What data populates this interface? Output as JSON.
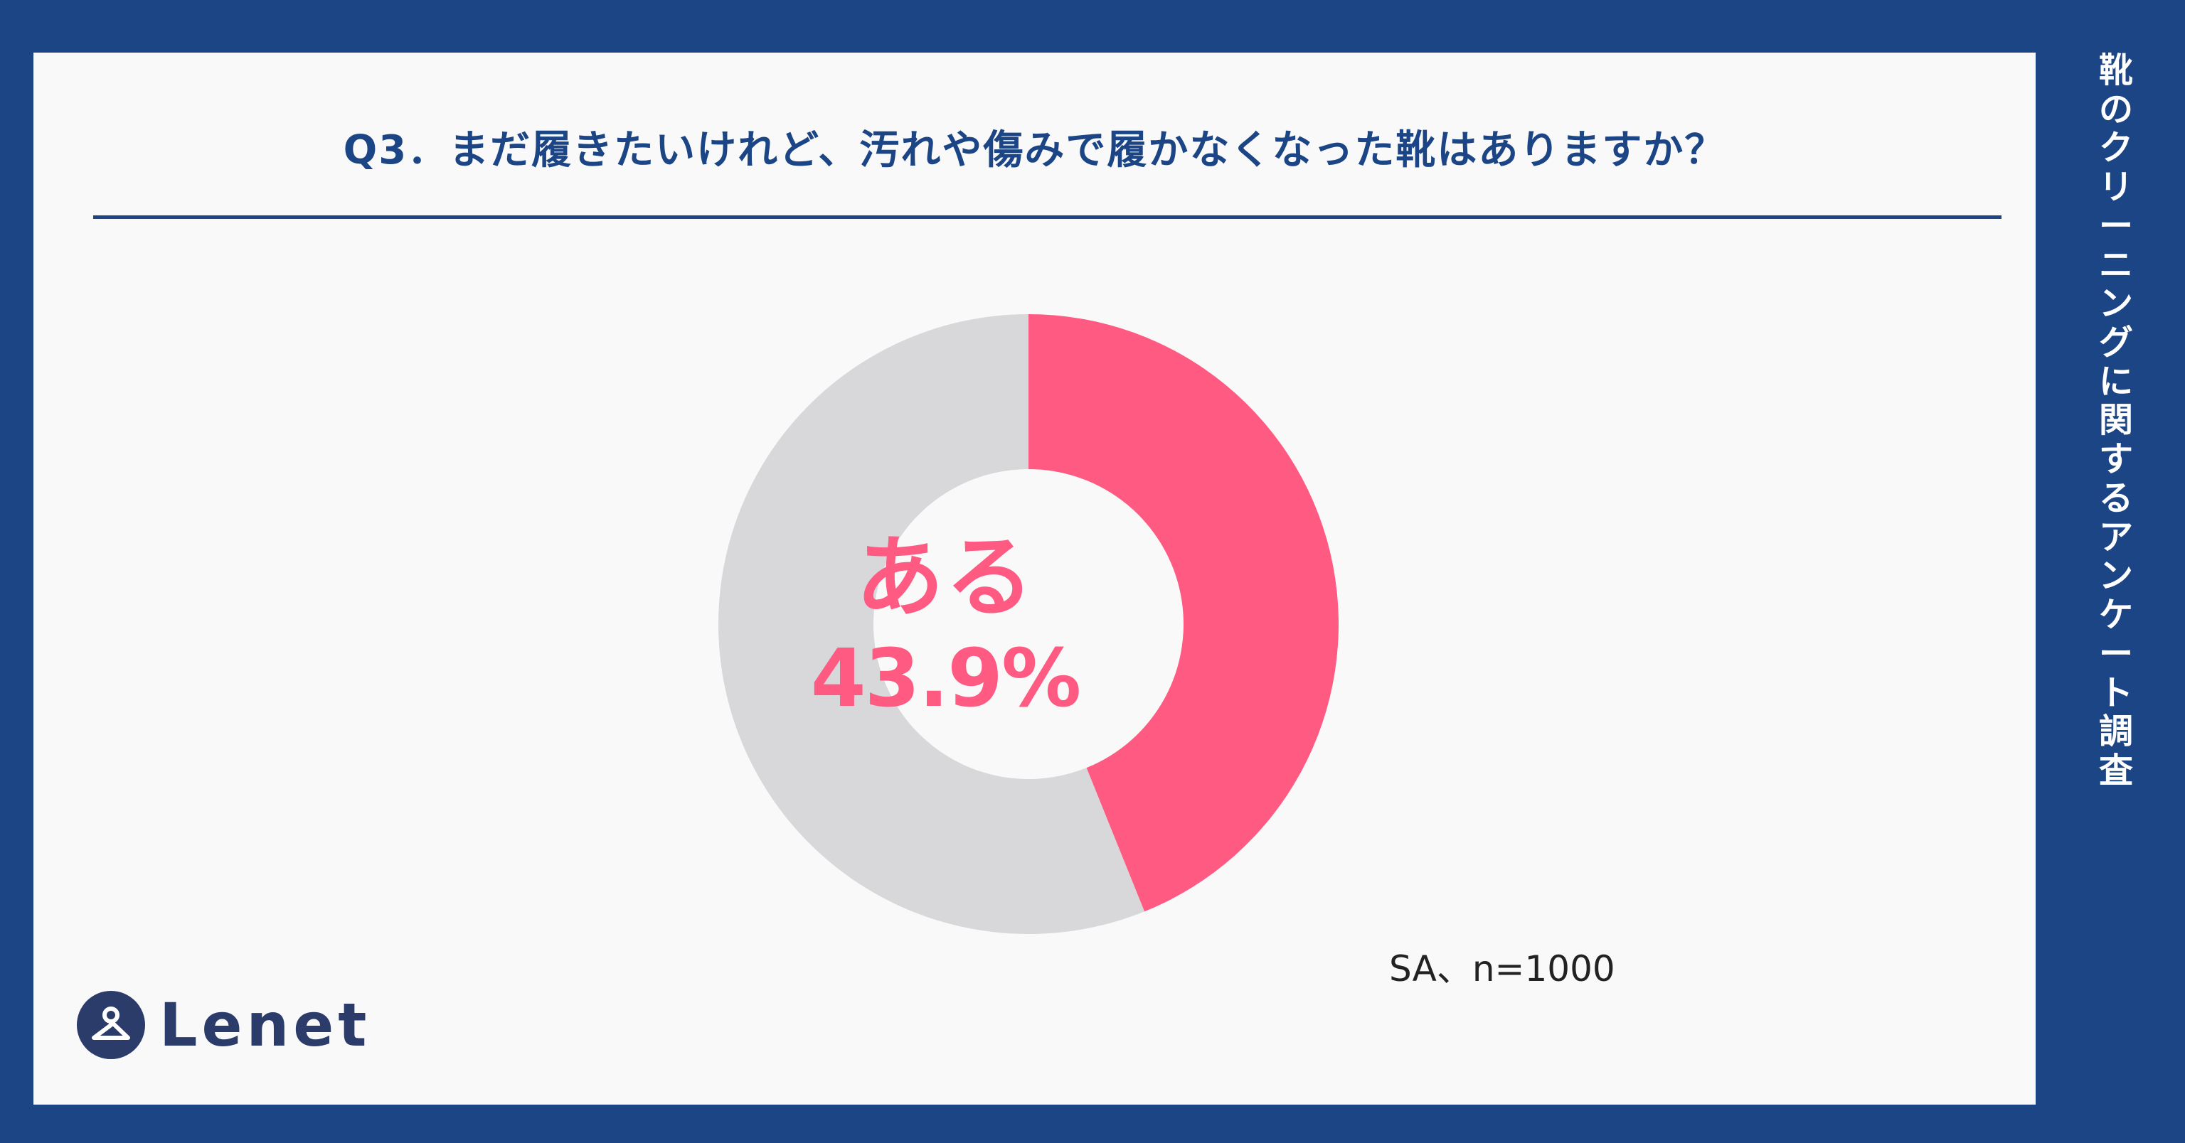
{
  "question": "Q3．まだ履きたいけれど、汚れや傷みで履かなくなった靴はありますか？",
  "side_title": "靴のクリーニングに関するアンケート調査",
  "note": "SA、n=1000",
  "logo": {
    "text": "Lenet",
    "icon": "hanger-person-icon"
  },
  "colors": {
    "frame": "#1c4586",
    "accent": "#ff5a82",
    "remainder": "#d8d8da",
    "panel": "#f9f9f9"
  },
  "chart_data": {
    "type": "pie",
    "categories": [
      "ある",
      ""
    ],
    "values": [
      43.9,
      56.1
    ],
    "unit": "%",
    "donut": true,
    "center_label": {
      "category": "ある",
      "value": "43.9%"
    }
  }
}
